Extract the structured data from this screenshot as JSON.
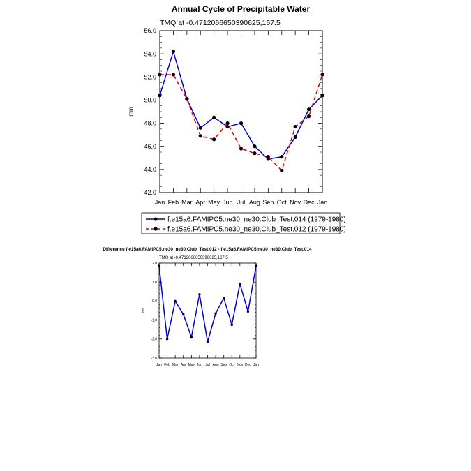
{
  "chart_data": [
    {
      "type": "line",
      "title": "Annual Cycle of Precipitable Water",
      "subtitle": "TMQ at -0.4712066650390625,167.5",
      "ylabel": "mm",
      "xlabel": "",
      "categories": [
        "Jan",
        "Feb",
        "Mar",
        "Apr",
        "May",
        "Jun",
        "Jul",
        "Aug",
        "Sep",
        "Oct",
        "Nov",
        "Dec",
        "Jan"
      ],
      "ylim": [
        42.0,
        56.0
      ],
      "yticks": [
        42.0,
        44.0,
        46.0,
        48.0,
        50.0,
        52.0,
        54.0,
        56.0
      ],
      "ytick_labels": [
        "42.0",
        "44.0",
        "46.0",
        "48.0",
        "50.0",
        "52.0",
        "54.0",
        "56.0"
      ],
      "legend_position": "bottom",
      "grid": false,
      "series": [
        {
          "name": "f.e15a6.FAMIPC5.ne30_ne30.Club_Test.014 (1979-1980)",
          "values": [
            50.4,
            54.2,
            50.1,
            47.6,
            48.5,
            47.7,
            48.0,
            46.0,
            44.9,
            45.1,
            46.8,
            49.2,
            50.4
          ],
          "color": "#0000cc",
          "dash": "solid"
        },
        {
          "name": "f.e15a6.FAMIPC5.ne30_ne30.Club_Test.012 (1979-1980)",
          "values": [
            52.2,
            52.2,
            50.1,
            46.9,
            46.6,
            48.0,
            45.8,
            45.4,
            45.1,
            43.9,
            47.7,
            48.6,
            52.2
          ],
          "color": "#dd0000",
          "dash": "dashed"
        }
      ]
    },
    {
      "type": "line",
      "title": "Difference f.e15a6.FAMIPC5.ne30_ne30.Club_Test.012 - f.e15a6.FAMIPC5.ne30_ne30.Club_Test.014",
      "subtitle": "TMQ at -0.4712066650390625,167.5",
      "ylabel": "mm",
      "xlabel": "",
      "categories": [
        "Jan",
        "Feb",
        "Mar",
        "Apr",
        "May",
        "Jun",
        "Jul",
        "Aug",
        "Sep",
        "Oct",
        "Nov",
        "Dec",
        "Jan"
      ],
      "ylim": [
        -3.0,
        2.0
      ],
      "yticks": [
        -3.0,
        -2.0,
        -1.0,
        0.0,
        1.0,
        2.0
      ],
      "ytick_labels": [
        "-3.0",
        "-2.0",
        "-1.0",
        "0.0",
        "1.0",
        "2.0"
      ],
      "grid": false,
      "series": [
        {
          "values": [
            1.85,
            -2.0,
            0.0,
            -0.7,
            -1.9,
            0.35,
            -2.15,
            -0.65,
            0.15,
            -1.25,
            0.9,
            -0.55,
            1.85
          ],
          "color": "#0000cc",
          "dash": "solid"
        }
      ]
    }
  ]
}
